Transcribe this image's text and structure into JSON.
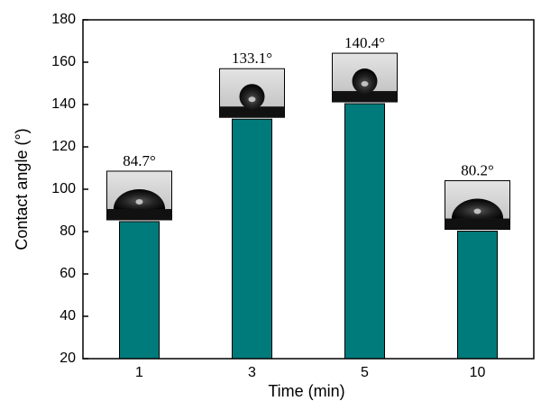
{
  "chart_data": {
    "type": "bar",
    "x_label": "Time (min)",
    "y_label": "Contact angle (°)",
    "categories": [
      "1",
      "3",
      "5",
      "10"
    ],
    "values": [
      84.7,
      133.1,
      140.4,
      80.2
    ],
    "value_labels": [
      "84.7°",
      "133.1°",
      "140.4°",
      "80.2°"
    ],
    "color": "#007b7b",
    "ylim": [
      20,
      180
    ],
    "yticks": [
      20,
      40,
      60,
      80,
      100,
      120,
      140,
      160,
      180
    ],
    "grid": false
  }
}
